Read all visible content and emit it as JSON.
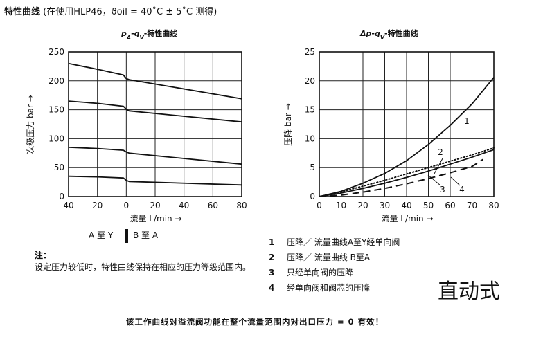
{
  "header": {
    "label": "特性曲线",
    "condition": "(在使用HLP46，ϑoil = 40˚C ± 5˚C 测得)"
  },
  "chart_data": [
    {
      "type": "line",
      "title": "pA-qV-特性曲线",
      "xlabel": "流量 L/min →",
      "ylabel": "次级压力 bar →",
      "x_ticks": [
        "40",
        "20",
        "0",
        "20",
        "40",
        "60",
        "80"
      ],
      "y_ticks": [
        "0",
        "50",
        "100",
        "150",
        "200",
        "250"
      ],
      "xlim": [
        -40,
        80
      ],
      "ylim": [
        0,
        250
      ],
      "grid": true,
      "direction_labels": {
        "left": "A 至 Y",
        "right": "B 至 A"
      },
      "series": [
        {
          "x": [
            -40,
            -20,
            -2,
            0,
            2,
            80
          ],
          "y": [
            230,
            220,
            210,
            204,
            202,
            169
          ]
        },
        {
          "x": [
            -40,
            -20,
            -2,
            0,
            2,
            80
          ],
          "y": [
            165,
            161,
            156,
            151,
            148,
            129
          ]
        },
        {
          "x": [
            -40,
            -20,
            -2,
            0,
            2,
            80
          ],
          "y": [
            85,
            83,
            80,
            77,
            75,
            56
          ]
        },
        {
          "x": [
            -40,
            -20,
            -2,
            0,
            2,
            80
          ],
          "y": [
            35,
            34,
            32,
            28,
            26,
            20
          ]
        }
      ]
    },
    {
      "type": "line",
      "title": "Δp-qV-特性曲线",
      "xlabel": "流量 L/min →",
      "ylabel": "压降 bar →",
      "x_ticks": [
        "0",
        "10",
        "20",
        "30",
        "40",
        "50",
        "60",
        "70",
        "80"
      ],
      "y_ticks": [
        "0",
        "5",
        "10",
        "15",
        "20",
        "25"
      ],
      "xlim": [
        0,
        80
      ],
      "ylim": [
        0,
        25
      ],
      "grid": true,
      "series": [
        {
          "label": "1",
          "style": "solid",
          "x": [
            0,
            10,
            20,
            30,
            40,
            50,
            60,
            70,
            80
          ],
          "y": [
            0,
            0.9,
            2.3,
            4.0,
            6.2,
            9.0,
            12.3,
            16.0,
            20.6
          ]
        },
        {
          "label": "2",
          "style": "dotted",
          "x": [
            0,
            10,
            20,
            30,
            40,
            50,
            60,
            70,
            80
          ],
          "y": [
            0,
            0.8,
            1.8,
            2.8,
            3.9,
            5.0,
            6.1,
            7.2,
            8.4
          ]
        },
        {
          "label": "3",
          "style": "solid",
          "x": [
            0,
            10,
            20,
            30,
            40,
            50,
            60,
            70,
            80
          ],
          "y": [
            0,
            0.6,
            1.4,
            2.3,
            3.3,
            4.4,
            5.6,
            6.8,
            8.1
          ]
        },
        {
          "label": "4",
          "style": "dashed",
          "x": [
            0,
            10,
            20,
            30,
            40,
            50,
            60,
            70,
            75
          ],
          "y": [
            0,
            0.25,
            0.75,
            1.4,
            2.2,
            3.1,
            4.1,
            5.2,
            6.4
          ]
        }
      ]
    }
  ],
  "note": {
    "title": "注：",
    "body": "设定压力较低时，特性曲线保持在相应的压力等级范围内。"
  },
  "legend": [
    {
      "num": "1",
      "text": "压降／ 流量曲线A至Y经单向阀"
    },
    {
      "num": "2",
      "text": "压降／ 流量曲线  B至A"
    },
    {
      "num": "3",
      "text": "只经单向阀的压降"
    },
    {
      "num": "4",
      "text": "经单向阀和阀芯的压降"
    }
  ],
  "mode": "直动式",
  "footer": "该工作曲线对溢流阀功能在整个流量范围内对出口压力 = 0 有效！"
}
